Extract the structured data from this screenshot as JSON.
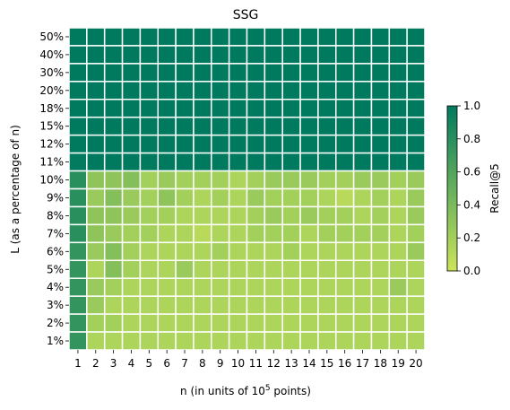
{
  "chart_data": {
    "type": "heatmap",
    "title": "SSG",
    "xlabel_prefix": "n (in units of 10",
    "xlabel_exponent": "5",
    "xlabel_suffix": " points)",
    "ylabel": "L (as a percentage of n)",
    "x_categories": [
      "1",
      "2",
      "3",
      "4",
      "5",
      "6",
      "7",
      "8",
      "9",
      "10",
      "11",
      "12",
      "13",
      "14",
      "15",
      "16",
      "17",
      "18",
      "19",
      "20"
    ],
    "y_categories": [
      "50%",
      "40%",
      "30%",
      "20%",
      "18%",
      "15%",
      "12%",
      "11%",
      "10%",
      "9%",
      "8%",
      "7%",
      "6%",
      "5%",
      "4%",
      "3%",
      "2%",
      "1%"
    ],
    "values": [
      [
        1,
        1,
        1,
        1,
        1,
        1,
        1,
        1,
        1,
        1,
        1,
        1,
        1,
        1,
        1,
        1,
        1,
        1,
        1,
        1
      ],
      [
        1,
        1,
        1,
        1,
        1,
        1,
        1,
        1,
        1,
        1,
        1,
        1,
        1,
        1,
        1,
        1,
        1,
        1,
        1,
        1
      ],
      [
        1,
        1,
        1,
        1,
        1,
        1,
        1,
        1,
        1,
        1,
        1,
        1,
        1,
        1,
        1,
        1,
        1,
        1,
        1,
        1
      ],
      [
        1,
        1,
        1,
        1,
        1,
        1,
        1,
        1,
        1,
        1,
        1,
        1,
        1,
        1,
        1,
        1,
        1,
        1,
        1,
        1
      ],
      [
        1,
        1,
        1,
        1,
        1,
        1,
        1,
        1,
        1,
        1,
        1,
        1,
        1,
        1,
        1,
        1,
        1,
        1,
        1,
        1
      ],
      [
        1,
        1,
        1,
        1,
        1,
        1,
        1,
        1,
        1,
        1,
        1,
        1,
        1,
        1,
        1,
        1,
        1,
        1,
        1,
        1
      ],
      [
        1,
        1,
        1,
        1,
        1,
        1,
        1,
        1,
        1,
        1,
        1,
        1,
        1,
        1,
        1,
        1,
        1,
        1,
        1,
        1
      ],
      [
        0.99,
        1,
        1,
        1,
        1,
        1,
        1,
        1,
        1,
        1,
        1,
        1,
        1,
        1,
        1,
        1,
        1,
        1,
        1,
        1
      ],
      [
        0.8,
        0.3,
        0.3,
        0.35,
        0.2,
        0.25,
        0.2,
        0.2,
        0.2,
        0.15,
        0.2,
        0.25,
        0.25,
        0.25,
        0.2,
        0.2,
        0.25,
        0.25,
        0.2,
        0.25
      ],
      [
        0.8,
        0.25,
        0.35,
        0.25,
        0.2,
        0.3,
        0.2,
        0.15,
        0.2,
        0.15,
        0.25,
        0.2,
        0.2,
        0.2,
        0.15,
        0.1,
        0.15,
        0.2,
        0.15,
        0.25
      ],
      [
        0.8,
        0.3,
        0.3,
        0.25,
        0.2,
        0.2,
        0.15,
        0.15,
        0.15,
        0.15,
        0.2,
        0.25,
        0.2,
        0.25,
        0.2,
        0.2,
        0.15,
        0.2,
        0.15,
        0.25
      ],
      [
        0.8,
        0.3,
        0.25,
        0.2,
        0.2,
        0.15,
        0.15,
        0.1,
        0.15,
        0.15,
        0.2,
        0.2,
        0.2,
        0.15,
        0.2,
        0.2,
        0.2,
        0.2,
        0.15,
        0.2
      ],
      [
        0.75,
        0.25,
        0.35,
        0.2,
        0.15,
        0.15,
        0.15,
        0.15,
        0.2,
        0.15,
        0.15,
        0.15,
        0.2,
        0.15,
        0.15,
        0.15,
        0.15,
        0.15,
        0.15,
        0.25
      ],
      [
        0.75,
        0.15,
        0.35,
        0.2,
        0.15,
        0.15,
        0.25,
        0.15,
        0.15,
        0.15,
        0.15,
        0.15,
        0.15,
        0.15,
        0.15,
        0.15,
        0.15,
        0.15,
        0.15,
        0.15
      ],
      [
        0.75,
        0.25,
        0.2,
        0.15,
        0.15,
        0.15,
        0.15,
        0.15,
        0.15,
        0.15,
        0.15,
        0.15,
        0.15,
        0.15,
        0.15,
        0.15,
        0.15,
        0.15,
        0.25,
        0.15
      ],
      [
        0.75,
        0.25,
        0.15,
        0.15,
        0.15,
        0.15,
        0.15,
        0.15,
        0.15,
        0.15,
        0.15,
        0.15,
        0.15,
        0.15,
        0.15,
        0.15,
        0.15,
        0.15,
        0.15,
        0.15
      ],
      [
        0.75,
        0.2,
        0.2,
        0.15,
        0.15,
        0.15,
        0.15,
        0.15,
        0.15,
        0.15,
        0.15,
        0.15,
        0.15,
        0.15,
        0.15,
        0.15,
        0.15,
        0.15,
        0.15,
        0.15
      ],
      [
        0.75,
        0.15,
        0.15,
        0.15,
        0.15,
        0.15,
        0.15,
        0.15,
        0.15,
        0.15,
        0.15,
        0.15,
        0.15,
        0.15,
        0.15,
        0.15,
        0.15,
        0.15,
        0.15,
        0.15
      ]
    ],
    "colorbar": {
      "label": "Recall@5",
      "range": [
        0,
        1
      ],
      "ticks": [
        "0.0",
        "0.2",
        "0.4",
        "0.6",
        "0.8",
        "1.0"
      ],
      "colormap": "summer_r",
      "color_low": "#cce45a",
      "color_high": "#007a5e"
    },
    "grid": false,
    "cell_borders": "white",
    "legend": "colorbar-right"
  }
}
